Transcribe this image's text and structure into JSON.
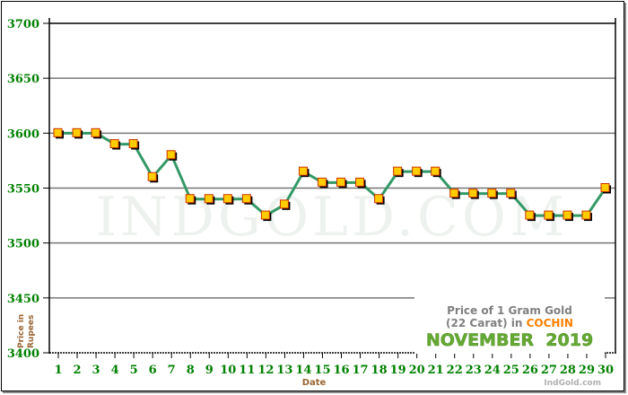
{
  "chart_data": {
    "type": "line",
    "title": "Price of 1 Gram Gold",
    "subtitle_prefix": "(22 Carat) in",
    "city": "COCHIN",
    "period": "NOVEMBER  2019",
    "xlabel": "Date",
    "ylabel_line1": "Price in",
    "ylabel_line2": "Rupees",
    "watermark": "INDGOLD.COM",
    "credit": "IndGold.com",
    "ylim": [
      3400,
      3700
    ],
    "yticks": [
      3400,
      3450,
      3500,
      3550,
      3600,
      3650,
      3700
    ],
    "x": [
      1,
      2,
      3,
      4,
      5,
      6,
      7,
      8,
      9,
      10,
      11,
      12,
      13,
      14,
      15,
      16,
      17,
      18,
      19,
      20,
      21,
      22,
      23,
      24,
      25,
      26,
      27,
      28,
      29,
      30
    ],
    "values": [
      3600,
      3600,
      3600,
      3590,
      3590,
      3560,
      3580,
      3540,
      3540,
      3540,
      3540,
      3525,
      3535,
      3565,
      3555,
      3555,
      3555,
      3540,
      3565,
      3565,
      3565,
      3545,
      3545,
      3545,
      3545,
      3525,
      3525,
      3525,
      3525,
      3550
    ],
    "grid": true,
    "colors": {
      "line": "#339966",
      "marker": "#ffcc00",
      "marker_edge": "#cc3300",
      "tick_text": "#008000",
      "axis_label": "#996633",
      "title_gray": "#808080",
      "city": "#ff8000",
      "period": "#66aa33"
    }
  }
}
